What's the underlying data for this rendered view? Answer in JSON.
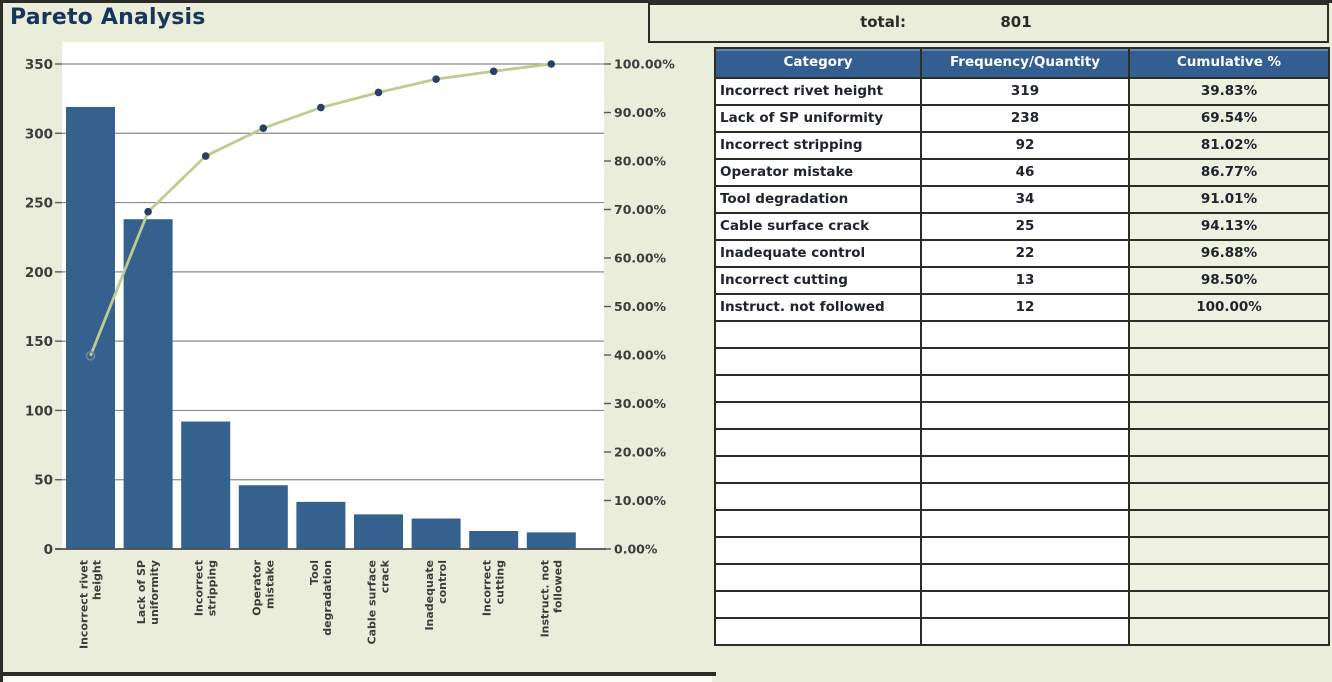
{
  "total": {
    "label": "total:",
    "value": "801"
  },
  "table": {
    "headers": [
      "Category",
      "Frequency/Quantity",
      "Cumulative %"
    ],
    "rows": [
      [
        "Incorrect rivet height",
        "319",
        "39.83%"
      ],
      [
        "Lack of SP uniformity",
        "238",
        "69.54%"
      ],
      [
        "Incorrect stripping",
        "92",
        "81.02%"
      ],
      [
        "Operator mistake",
        "46",
        "86.77%"
      ],
      [
        "Tool degradation",
        "34",
        "91.01%"
      ],
      [
        "Cable surface crack",
        "25",
        "94.13%"
      ],
      [
        "Inadequate control",
        "22",
        "96.88%"
      ],
      [
        "Incorrect cutting",
        "13",
        "98.50%"
      ],
      [
        "Instruct. not followed",
        "12",
        "100.00%"
      ]
    ],
    "empty_rows": 12
  },
  "chart_data": {
    "type": "bar",
    "subtype": "pareto-combo (bars + cumulative line)",
    "title": "Pareto Analysis",
    "categories": [
      "Incorrect rivet height",
      "Lack of SP uniformity",
      "Incorrect stripping",
      "Operator mistake",
      "Tool degradation",
      "Cable surface crack",
      "Inadequate control",
      "Incorrect cutting",
      "Instruct. not followed"
    ],
    "category_tick_lines": [
      [
        "Incorrect rivet",
        "height"
      ],
      [
        "Lack of SP",
        "uniformity"
      ],
      [
        "Incorrect",
        "stripping"
      ],
      [
        "Operator",
        "mistake"
      ],
      [
        "Tool",
        "degradation"
      ],
      [
        "Cable surface",
        "crack"
      ],
      [
        "Inadequate",
        "control"
      ],
      [
        "Incorrect",
        "cutting"
      ],
      [
        "Instruct. not",
        "followed"
      ]
    ],
    "series": [
      {
        "name": "Frequency/Quantity",
        "type": "bar",
        "axis": "left",
        "values": [
          319,
          238,
          92,
          46,
          34,
          25,
          22,
          13,
          12
        ]
      },
      {
        "name": "Cumulative %",
        "type": "line",
        "axis": "right",
        "values": [
          39.83,
          69.54,
          81.02,
          86.77,
          91.01,
          94.13,
          96.88,
          98.5,
          100.0
        ]
      }
    ],
    "left_axis": {
      "min": 0,
      "max": 350,
      "step": 50,
      "tick_labels": [
        "0",
        "50",
        "100",
        "150",
        "200",
        "250",
        "300",
        "350"
      ]
    },
    "right_axis": {
      "min": 0,
      "max": 100,
      "step": 10,
      "tick_labels": [
        "0.00%",
        "10.00%",
        "20.00%",
        "30.00%",
        "40.00%",
        "50.00%",
        "60.00%",
        "70.00%",
        "80.00%",
        "90.00%",
        "100.00%"
      ]
    },
    "grid": "horizontal gridlines every 50 left-axis units",
    "legend": "none",
    "x_tick_rotation_deg": 90
  },
  "colors": {
    "background": "#e9edd9",
    "plot_background": "#ffffff",
    "bar": "#35618f",
    "line": "#bccd8f",
    "marker": "#2c3e62",
    "first_marker_stroke": "#74839c",
    "gridline": "#8a8a8a",
    "baseline": "#4f4f4f",
    "axis_text": "#3d3d3d",
    "title": "#17365d",
    "table_header_bg": "#335e91",
    "table_header_text": "#ffffff",
    "cell_bg": "#ffffff",
    "cumulative_cell_bg": "#eef1e0",
    "cell_text": "#20242e",
    "border": "#2c2c28"
  }
}
